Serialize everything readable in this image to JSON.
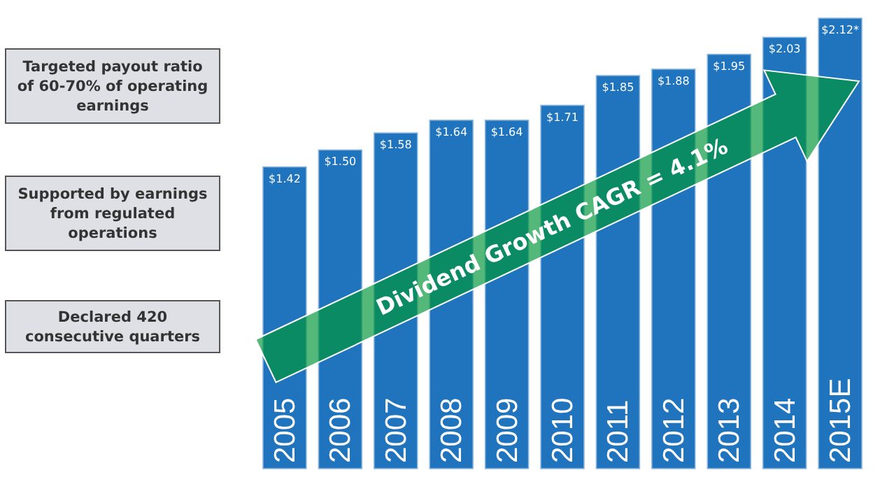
{
  "chart_data": {
    "type": "bar",
    "categories": [
      "2005",
      "2006",
      "2007",
      "2008",
      "2009",
      "2010",
      "2011",
      "2012",
      "2013",
      "2014",
      "2015E"
    ],
    "values": [
      1.42,
      1.5,
      1.58,
      1.64,
      1.64,
      1.71,
      1.85,
      1.88,
      1.95,
      2.03,
      2.12
    ],
    "value_labels": [
      "$1.42",
      "$1.50",
      "$1.58",
      "$1.64",
      "$1.64",
      "$1.71",
      "$1.85",
      "$1.88",
      "$1.95",
      "$2.03",
      "$2.12*"
    ],
    "color": "#1f74bd",
    "tick_labels": "x",
    "annotations": [
      "Targeted payout ratio of 60-70% of operating earnings",
      "Supported by earnings from regulated operations",
      "Declared 420 consecutive quarters",
      "Dividend Growth CAGR = 4.1%"
    ]
  }
}
